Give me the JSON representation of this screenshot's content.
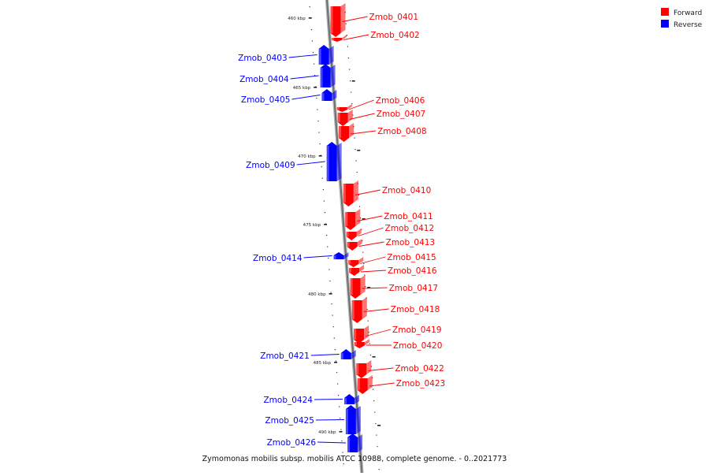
{
  "legend": [
    {
      "label": "Forward",
      "color": "#ff0000"
    },
    {
      "label": "Reverse",
      "color": "#0000ff"
    }
  ],
  "caption": "Zymomonas mobilis subsp. mobilis ATCC 10988, complete genome. - 0..2021773",
  "ticks": [
    "460 kbp",
    "465 kbp",
    "470 kbp",
    "475 kbp",
    "480 kbp",
    "485 kbp",
    "490 kbp"
  ],
  "genes": [
    {
      "name": "Zmob_0401",
      "strand": "forward"
    },
    {
      "name": "Zmob_0402",
      "strand": "forward"
    },
    {
      "name": "Zmob_0403",
      "strand": "reverse"
    },
    {
      "name": "Zmob_0404",
      "strand": "reverse"
    },
    {
      "name": "Zmob_0405",
      "strand": "reverse"
    },
    {
      "name": "Zmob_0406",
      "strand": "forward"
    },
    {
      "name": "Zmob_0407",
      "strand": "forward"
    },
    {
      "name": "Zmob_0408",
      "strand": "forward"
    },
    {
      "name": "Zmob_0409",
      "strand": "reverse"
    },
    {
      "name": "Zmob_0410",
      "strand": "forward"
    },
    {
      "name": "Zmob_0411",
      "strand": "forward"
    },
    {
      "name": "Zmob_0412",
      "strand": "forward"
    },
    {
      "name": "Zmob_0413",
      "strand": "forward"
    },
    {
      "name": "Zmob_0414",
      "strand": "reverse"
    },
    {
      "name": "Zmob_0415",
      "strand": "forward"
    },
    {
      "name": "Zmob_0416",
      "strand": "forward"
    },
    {
      "name": "Zmob_0417",
      "strand": "forward"
    },
    {
      "name": "Zmob_0418",
      "strand": "forward"
    },
    {
      "name": "Zmob_0419",
      "strand": "forward"
    },
    {
      "name": "Zmob_0420",
      "strand": "forward"
    },
    {
      "name": "Zmob_0421",
      "strand": "reverse"
    },
    {
      "name": "Zmob_0422",
      "strand": "forward"
    },
    {
      "name": "Zmob_0423",
      "strand": "forward"
    },
    {
      "name": "Zmob_0424",
      "strand": "reverse"
    },
    {
      "name": "Zmob_0425",
      "strand": "reverse"
    },
    {
      "name": "Zmob_0426",
      "strand": "reverse"
    }
  ]
}
